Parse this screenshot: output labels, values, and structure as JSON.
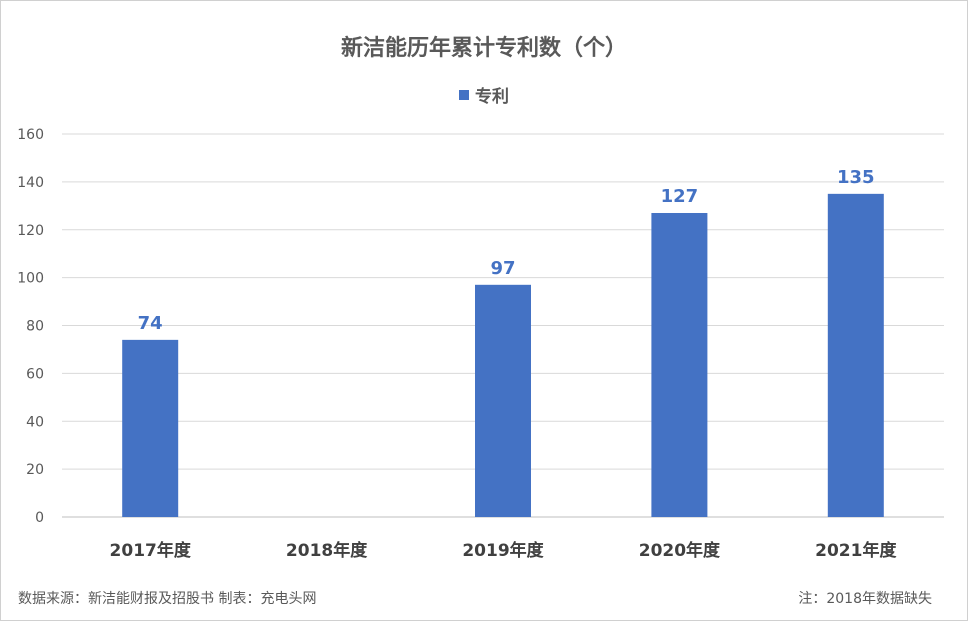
{
  "chart_data": {
    "type": "bar",
    "title": "新洁能历年累计专利数（个）",
    "categories": [
      "2017年度",
      "2018年度",
      "2019年度",
      "2020年度",
      "2021年度"
    ],
    "series": [
      {
        "name": "专利",
        "values": [
          74,
          null,
          97,
          127,
          135
        ]
      }
    ],
    "ylim": [
      0,
      160
    ],
    "yticks": [
      0,
      20,
      40,
      60,
      80,
      100,
      120,
      140,
      160
    ],
    "grid": true,
    "legend": "top-center",
    "bar_color": "#4472C4",
    "label_color": "#4472C4"
  },
  "footer": {
    "source": "数据来源：新洁能财报及招股书   制表：充电头网",
    "note": "注：2018年数据缺失"
  }
}
